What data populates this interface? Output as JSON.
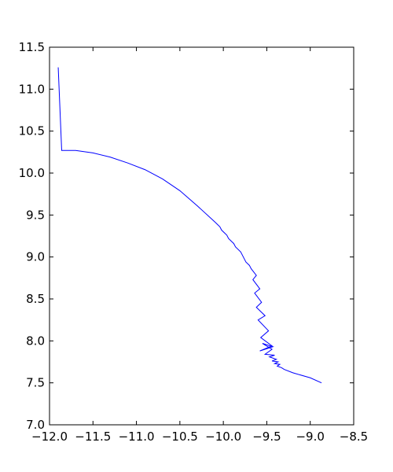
{
  "chart_data": {
    "type": "line",
    "title": "",
    "xlabel": "",
    "ylabel": "",
    "xlim": [
      -12.0,
      -8.5
    ],
    "ylim": [
      7.0,
      11.5
    ],
    "xticks": [
      -12.0,
      -11.5,
      -11.0,
      -10.5,
      -10.0,
      -9.5,
      -9.0,
      -8.5
    ],
    "xtick_labels": [
      "−12.0",
      "−11.5",
      "−11.0",
      "−10.5",
      "−10.0",
      "−9.5",
      "−9.0",
      "−8.5"
    ],
    "yticks": [
      7.0,
      7.5,
      8.0,
      8.5,
      9.0,
      9.5,
      10.0,
      10.5,
      11.0,
      11.5
    ],
    "ytick_labels": [
      "7.0",
      "7.5",
      "8.0",
      "8.5",
      "9.0",
      "9.5",
      "10.0",
      "10.5",
      "11.0",
      "11.5"
    ],
    "grid": false,
    "legend": "none",
    "series": [
      {
        "color": "#0000ff",
        "x": [
          -11.9,
          -11.86,
          -11.7,
          -11.5,
          -11.3,
          -11.1,
          -10.9,
          -10.7,
          -10.5,
          -10.3,
          -10.1,
          -10.08,
          -10.04,
          -10.02,
          -9.96,
          -9.94,
          -9.88,
          -9.86,
          -9.8,
          -9.76,
          -9.74,
          -9.7,
          -9.68,
          -9.62,
          -9.66,
          -9.58,
          -9.64,
          -9.56,
          -9.62,
          -9.52,
          -9.6,
          -9.48,
          -9.57,
          -9.44,
          -9.58,
          -9.43,
          -9.55,
          -9.44,
          -9.52,
          -9.41,
          -9.47,
          -9.39,
          -9.44,
          -9.37,
          -9.41,
          -9.35,
          -9.38,
          -9.33,
          -9.3,
          -9.2,
          -9.0,
          -8.87
        ],
        "y": [
          11.26,
          10.27,
          10.27,
          10.24,
          10.19,
          10.12,
          10.04,
          9.93,
          9.79,
          9.61,
          9.42,
          9.4,
          9.36,
          9.32,
          9.26,
          9.22,
          9.16,
          9.12,
          9.06,
          8.98,
          8.94,
          8.9,
          8.86,
          8.78,
          8.73,
          8.62,
          8.57,
          8.46,
          8.4,
          8.3,
          8.25,
          8.12,
          8.04,
          7.94,
          7.88,
          7.93,
          7.97,
          7.9,
          7.84,
          7.83,
          7.81,
          7.78,
          7.76,
          7.75,
          7.73,
          7.72,
          7.7,
          7.68,
          7.66,
          7.62,
          7.56,
          7.5
        ]
      }
    ]
  }
}
